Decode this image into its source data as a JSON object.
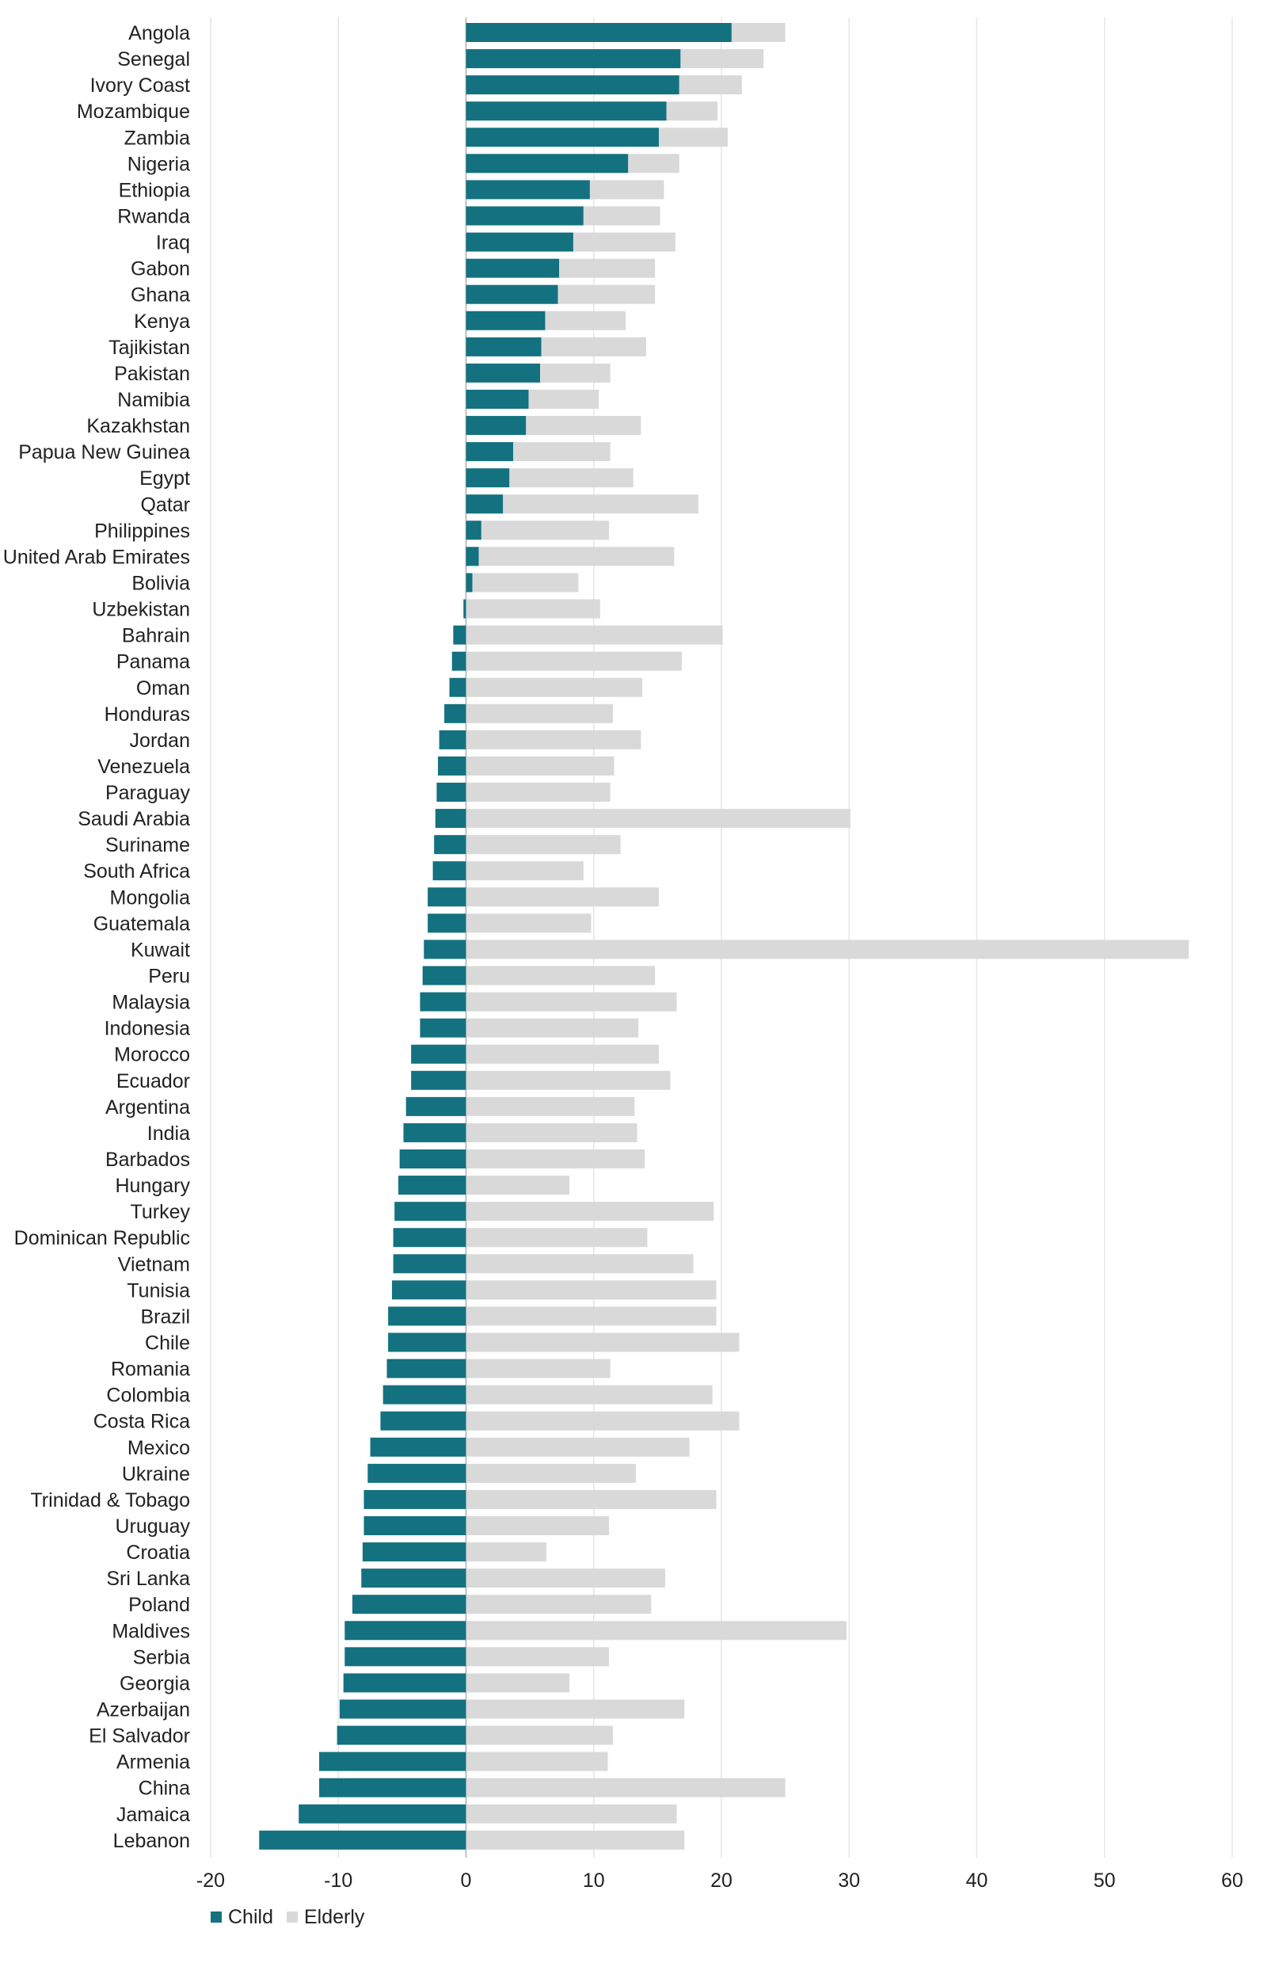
{
  "chart_data": {
    "type": "bar",
    "orientation": "horizontal",
    "stacked": true,
    "title": "",
    "xlabel": "",
    "ylabel": "",
    "xlim": [
      -20,
      60
    ],
    "x_ticks": [
      -20,
      -10,
      0,
      10,
      20,
      30,
      40,
      50,
      60
    ],
    "x_tick_labels": [
      "-20",
      "-10",
      "0",
      "10",
      "20",
      "30",
      "40",
      "50",
      "60"
    ],
    "grid": "vertical",
    "legend_position": "bottom-left",
    "categories": [
      "Angola",
      "Senegal",
      "Ivory Coast",
      "Mozambique",
      "Zambia",
      "Nigeria",
      "Ethiopia",
      "Rwanda",
      "Iraq",
      "Gabon",
      "Ghana",
      "Kenya",
      "Tajikistan",
      "Pakistan",
      "Namibia",
      "Kazakhstan",
      "Papua New Guinea",
      "Egypt",
      "Qatar",
      "Philippines",
      "United Arab Emirates",
      "Bolivia",
      "Uzbekistan",
      "Bahrain",
      "Panama",
      "Oman",
      "Honduras",
      "Jordan",
      "Venezuela",
      "Paraguay",
      "Saudi Arabia",
      "Suriname",
      "South Africa",
      "Mongolia",
      "Guatemala",
      "Kuwait",
      "Peru",
      "Malaysia",
      "Indonesia",
      "Morocco",
      "Ecuador",
      "Argentina",
      "India",
      "Barbados",
      "Hungary",
      "Turkey",
      "Dominican Republic",
      "Vietnam",
      "Tunisia",
      "Brazil",
      "Chile",
      "Romania",
      "Colombia",
      "Costa Rica",
      "Mexico",
      "Ukraine",
      "Trinidad & Tobago",
      "Uruguay",
      "Croatia",
      "Sri Lanka",
      "Poland",
      "Maldives",
      "Serbia",
      "Georgia",
      "Azerbaijan",
      "El Salvador",
      "Armenia",
      "China",
      "Jamaica",
      "Lebanon"
    ],
    "series": [
      {
        "name": "Child",
        "color": "#137180",
        "values": [
          20.8,
          16.8,
          16.7,
          15.7,
          15.1,
          12.7,
          9.7,
          9.2,
          8.4,
          7.3,
          7.2,
          6.2,
          5.9,
          5.8,
          4.9,
          4.7,
          3.7,
          3.4,
          2.9,
          1.2,
          1.0,
          0.5,
          -0.2,
          -1.0,
          -1.1,
          -1.3,
          -1.7,
          -2.1,
          -2.2,
          -2.3,
          -2.4,
          -2.5,
          -2.6,
          -3.0,
          -3.0,
          -3.3,
          -3.4,
          -3.6,
          -3.6,
          -4.3,
          -4.3,
          -4.7,
          -4.9,
          -5.2,
          -5.3,
          -5.6,
          -5.7,
          -5.7,
          -5.8,
          -6.1,
          -6.1,
          -6.2,
          -6.5,
          -6.7,
          -7.5,
          -7.7,
          -8.0,
          -8.0,
          -8.1,
          -8.2,
          -8.9,
          -9.5,
          -9.5,
          -9.6,
          -9.9,
          -10.1,
          -11.5,
          -11.5,
          -13.1,
          -16.2
        ]
      },
      {
        "name": "Elderly",
        "color": "#d9d9d9",
        "values": [
          4.2,
          6.5,
          4.9,
          4.0,
          5.4,
          4.0,
          5.8,
          6.0,
          8.0,
          7.5,
          7.6,
          6.3,
          8.2,
          5.5,
          5.5,
          9.0,
          7.6,
          9.7,
          15.3,
          10.0,
          15.3,
          8.3,
          10.5,
          20.1,
          16.9,
          13.8,
          11.5,
          13.7,
          11.6,
          11.3,
          30.1,
          12.1,
          9.2,
          15.1,
          9.8,
          56.6,
          14.8,
          16.5,
          13.5,
          15.1,
          16.0,
          13.2,
          13.4,
          14.0,
          8.1,
          19.4,
          14.2,
          17.8,
          19.6,
          19.6,
          21.4,
          11.3,
          19.3,
          21.4,
          17.5,
          13.3,
          19.6,
          11.2,
          6.3,
          15.6,
          14.5,
          29.8,
          11.2,
          8.1,
          17.1,
          11.5,
          11.1,
          25.0,
          16.5,
          17.1
        ]
      }
    ]
  }
}
